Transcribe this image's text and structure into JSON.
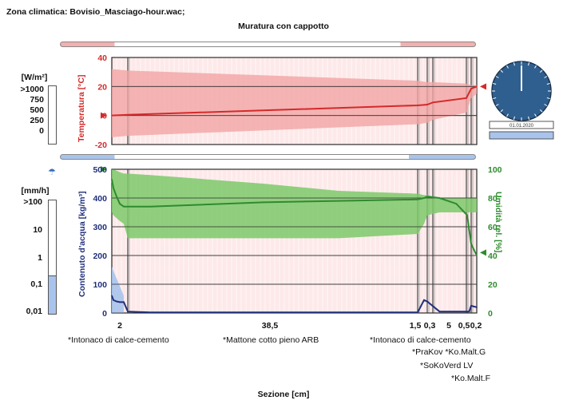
{
  "header": {
    "climate_label": "Zona climatica: Bovisio_Masciago-hour.wac;",
    "construction_title": "Muratura con cappotto"
  },
  "colors": {
    "temperature": "#d42a2a",
    "temperature_band": "#f2a4a4",
    "water": "#1f2f7a",
    "water_band": "#a9c4ec",
    "humidity": "#2e8b2e",
    "humidity_band": "#7cc96a",
    "clock_face": "#2f5f8f"
  },
  "heat_flux_scale": {
    "unit": "[W/m²]",
    "ticks": [
      ">1000",
      "750",
      "500",
      "250",
      "0"
    ]
  },
  "rain_scale": {
    "symbol": "☂",
    "unit": "[mm/h]",
    "ticks": [
      ">100",
      "10",
      "1",
      "0,1",
      "0,01"
    ],
    "fill_level": 0.33
  },
  "clock": {
    "date_label": "01.01.2020"
  },
  "chart_data": [
    {
      "type": "line",
      "ylabel": "Temperatura [°C]",
      "ylim": [
        -20,
        40
      ],
      "yticks": [
        40,
        20,
        0,
        -20
      ],
      "x": [
        0,
        2,
        40.5,
        42,
        42.3,
        43.3,
        44.5,
        44.7
      ],
      "series": [
        {
          "values": [
            0,
            0.5,
            7,
            7.5,
            9,
            12,
            18.5,
            20
          ],
          "band_max": [
            32,
            31,
            24,
            23,
            23,
            22,
            21,
            21
          ],
          "band_min": [
            -15,
            -14,
            -6,
            -5,
            -3,
            2,
            12,
            15
          ]
        }
      ],
      "grid": true
    },
    {
      "type": "line",
      "ylabel": "Contenuto d'acqua [kg/m³]",
      "ylim": [
        0,
        500
      ],
      "yticks": [
        500,
        400,
        300,
        200,
        100,
        0
      ],
      "y2label": "Umidità rel. [%]",
      "y2lim": [
        0,
        100
      ],
      "y2ticks": [
        100,
        80,
        60,
        40,
        20,
        0
      ],
      "x": [
        0,
        0.2,
        0.6,
        1,
        1.5,
        2,
        5,
        10,
        20,
        30,
        40.5,
        41.5,
        42,
        42.5,
        43,
        43.5,
        44,
        44.5,
        44.7
      ],
      "series": [
        {
          "axis": "left",
          "values": [
            60,
            45,
            40,
            38,
            38,
            5,
            2,
            2,
            2,
            2,
            2,
            45,
            40,
            5,
            5,
            5,
            5,
            25,
            20
          ]
        },
        {
          "axis": "right",
          "values": [
            93,
            87,
            81,
            76,
            74,
            74,
            74,
            75,
            77,
            78,
            79,
            80,
            81,
            80,
            76,
            68,
            58,
            48,
            40
          ],
          "band_max": [
            100,
            100,
            99,
            98,
            97,
            97,
            96,
            94,
            90,
            85,
            83,
            82,
            82,
            80,
            80,
            80,
            80,
            80,
            80
          ],
          "band_min": [
            70,
            68,
            66,
            64,
            62,
            52,
            52,
            52,
            52,
            52,
            55,
            62,
            68,
            70,
            70,
            70,
            70,
            70,
            70
          ]
        }
      ],
      "grid": true
    }
  ],
  "section": {
    "xlabel": "Sezione [cm]",
    "x_ticks": [
      "2",
      "38,5",
      "1,5",
      "0,3",
      "5",
      "0,5",
      "0,2"
    ],
    "material_labels": [
      "*Intonaco di calce-cemento",
      "*Mattone cotto pieno ARB",
      "*Intonaco di calce-cemento",
      "*PraKov *Ko.Malt.G",
      "*SoKoVerd LV",
      "*Ko.Malt.F"
    ]
  }
}
